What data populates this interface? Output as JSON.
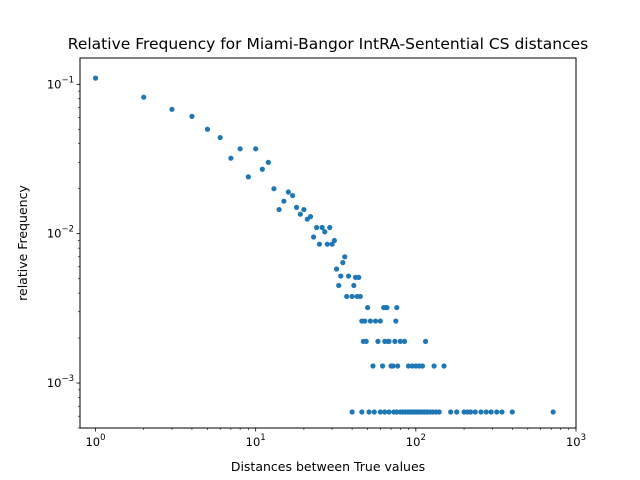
{
  "chart_data": {
    "type": "scatter",
    "title": "Relative Frequency for Miami-Bangor IntRA-Sentential CS distances",
    "xlabel": "Distances between True values",
    "ylabel": "relative Frequency",
    "xscale": "log",
    "yscale": "log",
    "xlim": [
      0.8,
      1000
    ],
    "ylim": [
      0.0005,
      0.15
    ],
    "grid": false,
    "legend": "none",
    "marker_color": "#1f77b4",
    "x_ticks": [
      {
        "value": 1,
        "base": "10",
        "exp": "0"
      },
      {
        "value": 10,
        "base": "10",
        "exp": "1"
      },
      {
        "value": 100,
        "base": "10",
        "exp": "2"
      },
      {
        "value": 1000,
        "base": "10",
        "exp": "3"
      }
    ],
    "y_ticks": [
      {
        "value": 0.001,
        "base": "10",
        "exp": "−3"
      },
      {
        "value": 0.01,
        "base": "10",
        "exp": "−2"
      },
      {
        "value": 0.1,
        "base": "10",
        "exp": "−1"
      }
    ],
    "points": [
      [
        1,
        0.11
      ],
      [
        2,
        0.082
      ],
      [
        3,
        0.068
      ],
      [
        4,
        0.061
      ],
      [
        5,
        0.05
      ],
      [
        6,
        0.044
      ],
      [
        7,
        0.032
      ],
      [
        8,
        0.037
      ],
      [
        9,
        0.024
      ],
      [
        10,
        0.037
      ],
      [
        11,
        0.027
      ],
      [
        12,
        0.03
      ],
      [
        13,
        0.02
      ],
      [
        14,
        0.0145
      ],
      [
        15,
        0.0165
      ],
      [
        16,
        0.019
      ],
      [
        17,
        0.018
      ],
      [
        18,
        0.015
      ],
      [
        19,
        0.0135
      ],
      [
        20,
        0.0145
      ],
      [
        21,
        0.0125
      ],
      [
        22,
        0.013
      ],
      [
        23,
        0.0095
      ],
      [
        24,
        0.011
      ],
      [
        25,
        0.0085
      ],
      [
        26,
        0.011
      ],
      [
        27,
        0.0103
      ],
      [
        28,
        0.0085
      ],
      [
        29,
        0.011
      ],
      [
        30,
        0.0085
      ],
      [
        31,
        0.009
      ],
      [
        32,
        0.0058
      ],
      [
        33,
        0.0045
      ],
      [
        34,
        0.0052
      ],
      [
        35,
        0.0064
      ],
      [
        36,
        0.007
      ],
      [
        37,
        0.0038
      ],
      [
        38,
        0.0052
      ],
      [
        40,
        0.0038
      ],
      [
        41,
        0.0045
      ],
      [
        42,
        0.0051
      ],
      [
        43,
        0.0038
      ],
      [
        44,
        0.0051
      ],
      [
        45,
        0.0038
      ],
      [
        46,
        0.0026
      ],
      [
        47,
        0.0019
      ],
      [
        48,
        0.0026
      ],
      [
        49,
        0.0019
      ],
      [
        50,
        0.0032
      ],
      [
        52,
        0.0026
      ],
      [
        54,
        0.0013
      ],
      [
        56,
        0.0026
      ],
      [
        58,
        0.0019
      ],
      [
        60,
        0.0026
      ],
      [
        62,
        0.0013
      ],
      [
        63,
        0.0032
      ],
      [
        64,
        0.0019
      ],
      [
        65,
        0.0032
      ],
      [
        66,
        0.0032
      ],
      [
        67,
        0.0019
      ],
      [
        68,
        0.0019
      ],
      [
        70,
        0.0013
      ],
      [
        72,
        0.0013
      ],
      [
        74,
        0.0019
      ],
      [
        75,
        0.0026
      ],
      [
        76,
        0.0032
      ],
      [
        77,
        0.0013
      ],
      [
        80,
        0.0019
      ],
      [
        85,
        0.0019
      ],
      [
        90,
        0.0013
      ],
      [
        95,
        0.0013
      ],
      [
        100,
        0.0013
      ],
      [
        105,
        0.0013
      ],
      [
        110,
        0.0013
      ],
      [
        115,
        0.0019
      ],
      [
        130,
        0.0013
      ],
      [
        150,
        0.0013
      ],
      [
        40,
        0.00064
      ],
      [
        46,
        0.00064
      ],
      [
        51,
        0.00064
      ],
      [
        55,
        0.00064
      ],
      [
        60,
        0.00064
      ],
      [
        64,
        0.00064
      ],
      [
        68,
        0.00064
      ],
      [
        73,
        0.00064
      ],
      [
        76,
        0.00064
      ],
      [
        80,
        0.00064
      ],
      [
        83,
        0.00064
      ],
      [
        86,
        0.00064
      ],
      [
        89,
        0.00064
      ],
      [
        92,
        0.00064
      ],
      [
        95,
        0.00064
      ],
      [
        98,
        0.00064
      ],
      [
        101,
        0.00064
      ],
      [
        104,
        0.00064
      ],
      [
        107,
        0.00064
      ],
      [
        110,
        0.00064
      ],
      [
        114,
        0.00064
      ],
      [
        118,
        0.00064
      ],
      [
        123,
        0.00064
      ],
      [
        128,
        0.00064
      ],
      [
        134,
        0.00064
      ],
      [
        140,
        0.00064
      ],
      [
        165,
        0.00064
      ],
      [
        180,
        0.00064
      ],
      [
        200,
        0.00064
      ],
      [
        210,
        0.00064
      ],
      [
        220,
        0.00064
      ],
      [
        235,
        0.00064
      ],
      [
        255,
        0.00064
      ],
      [
        275,
        0.00064
      ],
      [
        295,
        0.00064
      ],
      [
        320,
        0.00064
      ],
      [
        345,
        0.00064
      ],
      [
        400,
        0.00064
      ],
      [
        720,
        0.00064
      ]
    ]
  }
}
